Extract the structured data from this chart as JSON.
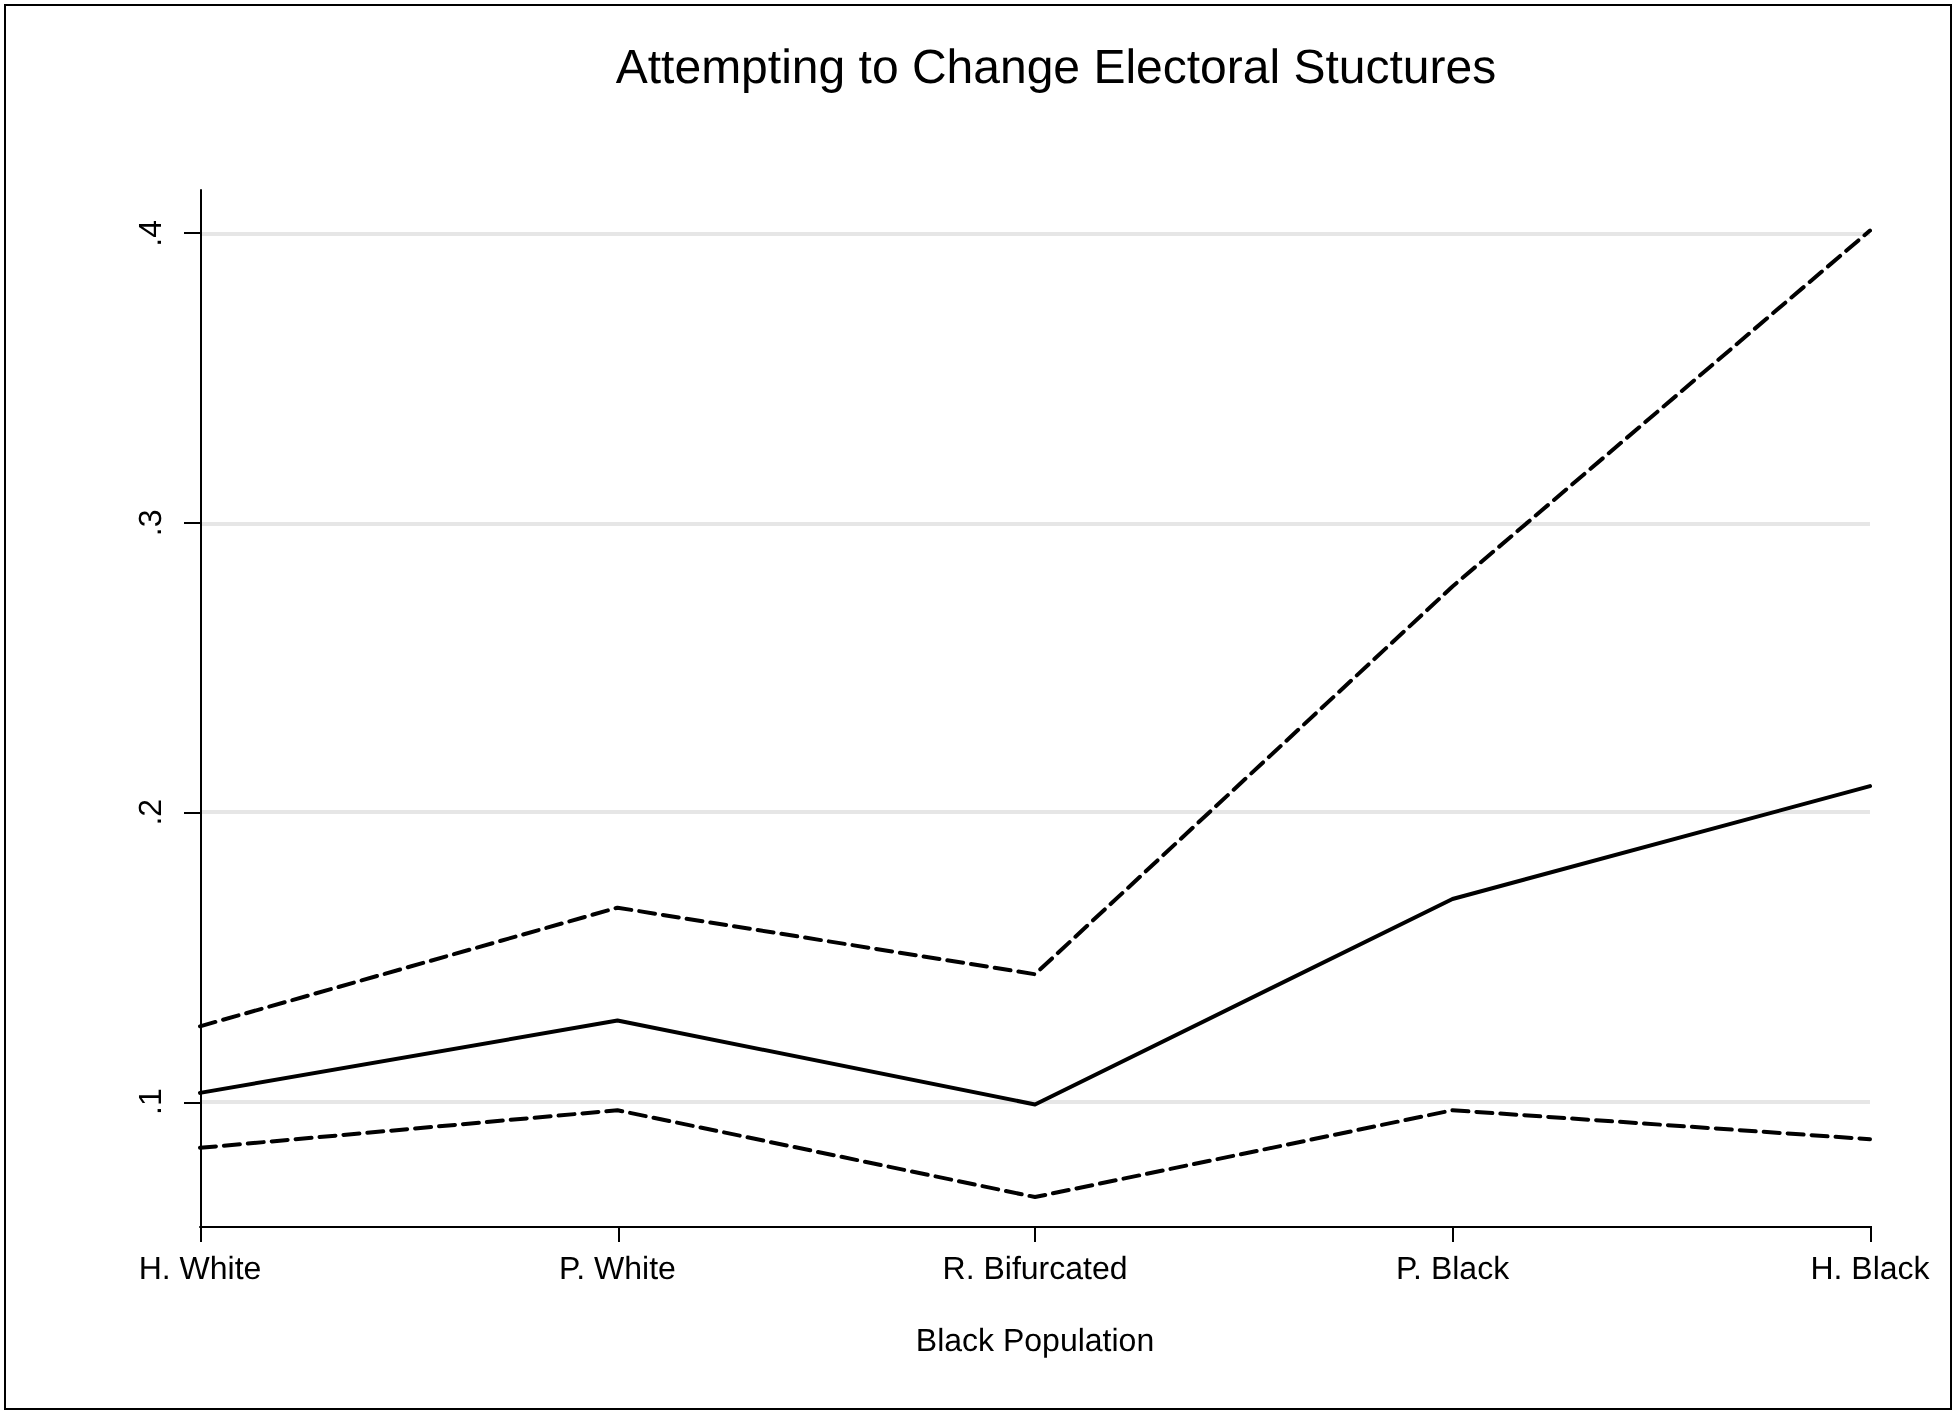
{
  "chart_data": {
    "type": "line",
    "title": "Attempting to Change Electoral Stuctures",
    "xlabel": "Black Population",
    "categories": [
      "H. White",
      "P. White",
      "R. Bifurcated",
      "P. Black",
      "H. Black"
    ],
    "series": [
      {
        "color": "#000000",
        "line_style": "dashed",
        "values": [
          0.126,
          0.167,
          0.144,
          0.278,
          0.401
        ]
      },
      {
        "color": "#000000",
        "line_style": "solid",
        "values": [
          0.103,
          0.128,
          0.099,
          0.17,
          0.209
        ]
      },
      {
        "color": "#000000",
        "line_style": "dashed",
        "values": [
          0.084,
          0.097,
          0.067,
          0.097,
          0.087
        ]
      }
    ],
    "ylim": [
      0.057,
      0.415
    ],
    "yticks": [
      {
        "value": 0.1,
        "label": ".1"
      },
      {
        "value": 0.2,
        "label": ".2"
      },
      {
        "value": 0.3,
        "label": ".3"
      },
      {
        "value": 0.4,
        "label": ".4"
      }
    ],
    "grid": "y",
    "marker": "none"
  }
}
